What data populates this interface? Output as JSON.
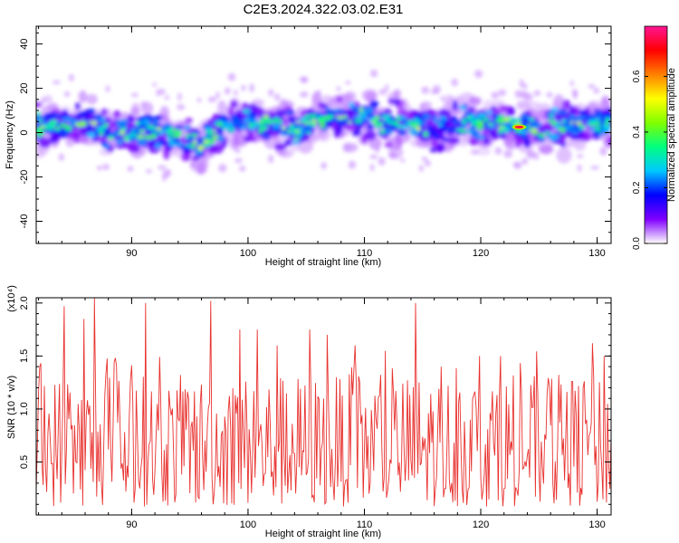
{
  "figure_title": "C2E3.2024.322.03.02.E31",
  "colors": {
    "snr_line": "#e8322f",
    "frame": "#000000"
  },
  "chart_data": [
    {
      "type": "heatmap",
      "title": "C2E3.2024.322.03.02.E31",
      "xlabel": "Height of straight line (km)",
      "ylabel": "Frequency (Hz)",
      "xlim": [
        81.8,
        131.2
      ],
      "ylim": [
        -50,
        48
      ],
      "x_ticks": [
        90,
        100,
        110,
        120,
        130
      ],
      "y_ticks": [
        -40,
        -20,
        0,
        20,
        40
      ],
      "colorbar": {
        "label": "Normalized spectral amplitude",
        "range": [
          0,
          0.78
        ],
        "ticks": [
          0.0,
          0.2,
          0.4,
          0.6
        ],
        "tick_labels": [
          "0.0",
          "0.2",
          "0.4",
          "0.6"
        ],
        "colormap": [
          "#ffffff",
          "#8000ff",
          "#0000ff",
          "#00c8ff",
          "#00ff80",
          "#80ff00",
          "#ffff00",
          "#ff8000",
          "#ff0000",
          "#ff1493"
        ]
      },
      "ridge_center_hz": [
        [
          82,
          2
        ],
        [
          84,
          3
        ],
        [
          86,
          4
        ],
        [
          88,
          1
        ],
        [
          90,
          0
        ],
        [
          92,
          0
        ],
        [
          94,
          -2
        ],
        [
          96,
          -5
        ],
        [
          98,
          3
        ],
        [
          100,
          5
        ],
        [
          102,
          4
        ],
        [
          104,
          2
        ],
        [
          106,
          5
        ],
        [
          108,
          8
        ],
        [
          110,
          6
        ],
        [
          112,
          5
        ],
        [
          114,
          3
        ],
        [
          116,
          1
        ],
        [
          118,
          3
        ],
        [
          120,
          5
        ],
        [
          122,
          4
        ],
        [
          124,
          2
        ],
        [
          126,
          3
        ],
        [
          128,
          4
        ],
        [
          130,
          5
        ],
        [
          131,
          5
        ]
      ],
      "peak": {
        "x_km": 123.3,
        "freq_hz": 2.5,
        "amplitude": 0.75
      }
    },
    {
      "type": "line",
      "xlabel": "Height of straight line (km)",
      "ylabel": "SNR (10 * v/v)",
      "y_multiplier": "(x10⁴)",
      "xlim": [
        81.8,
        131.2
      ],
      "ylim": [
        0,
        2.05
      ],
      "x_ticks": [
        90,
        100,
        110,
        120,
        130
      ],
      "y_ticks": [
        0.5,
        1.0,
        1.5,
        2.0
      ],
      "y_tick_labels": [
        "0.5",
        "1.0",
        "1.5",
        "2.0"
      ],
      "series": [
        {
          "color": "#e8322f",
          "sample_spacing_km": 0.1,
          "notable_peaks": [
            [
              82.1,
              1.4
            ],
            [
              84.2,
              1.97
            ],
            [
              85.9,
              1.85
            ],
            [
              86.8,
              2.05
            ],
            [
              91.2,
              2.0
            ],
            [
              96.8,
              2.02
            ],
            [
              99.3,
              1.75
            ],
            [
              100.8,
              1.75
            ],
            [
              102.5,
              1.6
            ],
            [
              105.3,
              1.75
            ],
            [
              106.8,
              1.7
            ],
            [
              109.2,
              1.6
            ],
            [
              114.4,
              2.0
            ],
            [
              119.9,
              1.5
            ],
            [
              121.7,
              1.5
            ],
            [
              129.6,
              1.62
            ],
            [
              130.6,
              1.5
            ]
          ]
        }
      ]
    }
  ]
}
